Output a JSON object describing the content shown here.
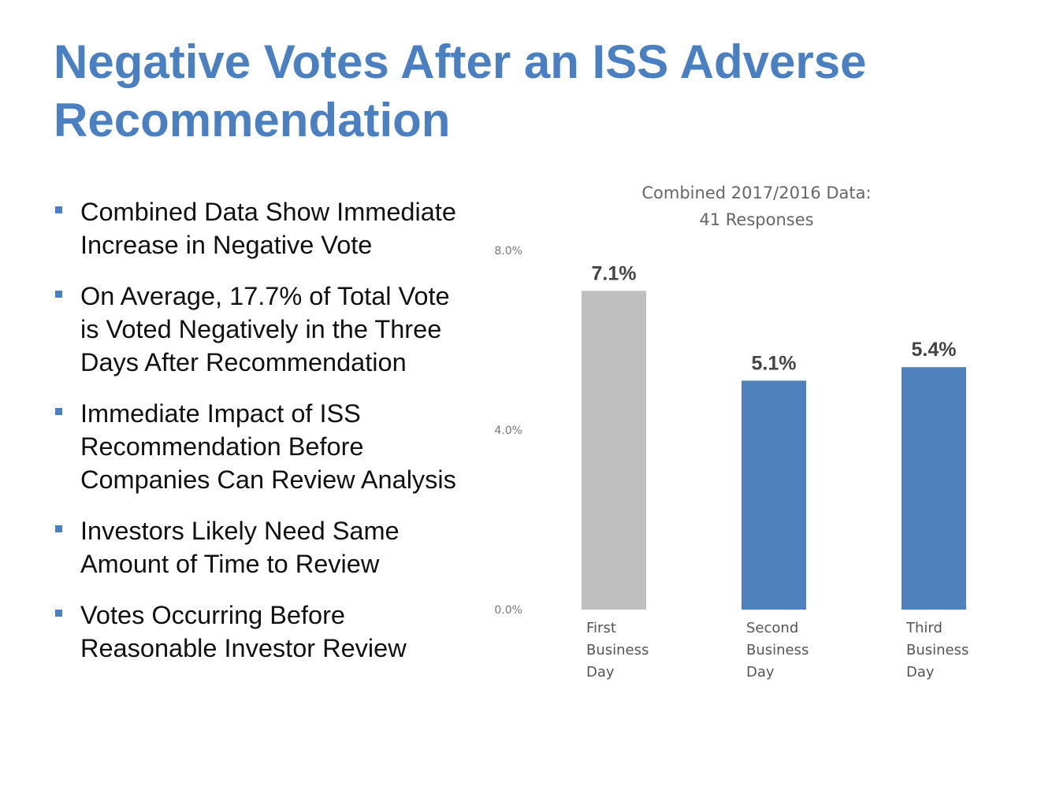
{
  "slide": {
    "title": "Negative Votes After an ISS Adverse Recommendation",
    "bullets": [
      "Combined Data Show Immediate Increase in Negative Vote",
      "On Average, 17.7% of Total Vote is Voted Negatively in the Three Days After Recommendation",
      "Immediate Impact of ISS Recommendation Before Companies Can Review Analysis",
      "Investors Likely Need Same Amount of Time to Review",
      "Votes Occurring Before Reasonable Investor Review"
    ],
    "colors": {
      "title": "#4a7fc1",
      "bullet": "#4a7fc1"
    }
  },
  "chart_data": {
    "type": "bar",
    "title": "Combined 2017/2016 Data:",
    "subtitle": "41 Responses",
    "categories": [
      [
        "First",
        "Business",
        "Day"
      ],
      [
        "Second",
        "Business",
        "Day"
      ],
      [
        "Third",
        "Business",
        "Day"
      ]
    ],
    "values": [
      7.1,
      5.1,
      5.4
    ],
    "data_labels": [
      "7.1%",
      "5.1%",
      "5.4%"
    ],
    "bar_colors": [
      "#bfbfbf",
      "#4f81bd",
      "#4f81bd"
    ],
    "yticks": [
      0,
      4,
      8
    ],
    "ytick_labels": [
      "0.0%",
      "4.0%",
      "8.0%"
    ],
    "ylim": [
      0,
      8
    ],
    "xlabel": "",
    "ylabel": "",
    "grid": false,
    "legend": "none"
  }
}
